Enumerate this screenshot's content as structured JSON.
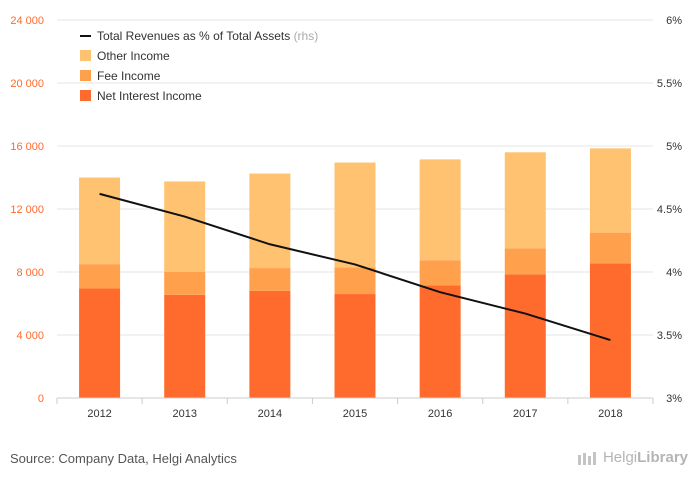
{
  "chart_data": {
    "type": "bar",
    "stacked": true,
    "categories": [
      "2012",
      "2013",
      "2014",
      "2015",
      "2016",
      "2017",
      "2018"
    ],
    "series": [
      {
        "name": "Net Interest Income",
        "color": "#ff6b2c",
        "values": [
          6950,
          6550,
          6800,
          6600,
          7150,
          7850,
          8550
        ]
      },
      {
        "name": "Fee Income",
        "color": "#ffa04d",
        "values": [
          1550,
          1450,
          1450,
          1700,
          1600,
          1650,
          1950
        ]
      },
      {
        "name": "Other Income",
        "color": "#ffc270",
        "values": [
          5500,
          5750,
          6000,
          6650,
          6400,
          6100,
          5350
        ]
      }
    ],
    "line_series": {
      "name": "Total Revenues as % of Total Assets",
      "name_suffix": "(rhs)",
      "color": "#111111",
      "values": [
        4.62,
        4.44,
        4.22,
        4.06,
        3.84,
        3.67,
        3.46
      ]
    },
    "y_left": {
      "ticks": [
        "0",
        "4 000",
        "8 000",
        "12 000",
        "16 000",
        "20 000",
        "24 000"
      ],
      "min": 0,
      "max": 24000,
      "color": "#ff6b2c"
    },
    "y_right": {
      "ticks": [
        "3%",
        "3.5%",
        "4%",
        "4.5%",
        "5%",
        "5.5%",
        "6%"
      ],
      "min": 3,
      "max": 6
    },
    "grid": true,
    "legend": "top-left"
  },
  "footer": {
    "source": "Source: Company Data, Helgi Analytics",
    "brand_regular": "Helgi",
    "brand_bold": "Library"
  }
}
